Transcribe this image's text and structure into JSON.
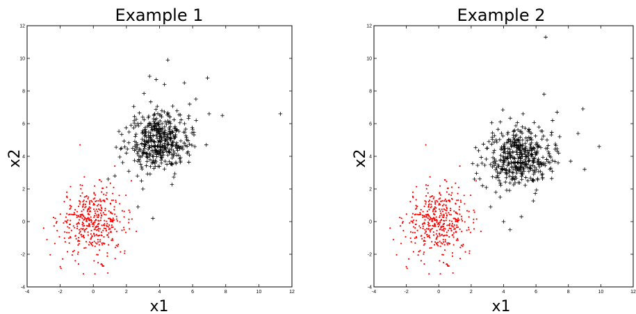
{
  "chart_data": [
    {
      "type": "scatter",
      "title": "Example 1",
      "xlabel": "x1",
      "ylabel": "x2",
      "xlim": [
        -4,
        12
      ],
      "ylim": [
        -4,
        12
      ],
      "xticks": [
        -4,
        -2,
        0,
        2,
        4,
        6,
        8,
        10,
        12
      ],
      "yticks": [
        -4,
        -2,
        0,
        2,
        4,
        6,
        8,
        10,
        12
      ],
      "grid": false,
      "series": [
        {
          "marker": "dot",
          "color": "#ff0000",
          "center": [
            0,
            0
          ],
          "spread": [
            1.0,
            1.0
          ],
          "points": [
            [
              -0.8,
              4.7
            ],
            [
              1.3,
              3.4
            ],
            [
              0.1,
              -3.2
            ],
            [
              -0.6,
              -3.2
            ],
            [
              -3.0,
              -0.4
            ],
            [
              -2.8,
              -1.1
            ],
            [
              2.3,
              2.5
            ],
            [
              1.9,
              -1.8
            ],
            [
              -1.6,
              1.8
            ],
            [
              0.5,
              -2.6
            ],
            [
              -2.3,
              0.2
            ],
            [
              2.6,
              -0.6
            ]
          ]
        },
        {
          "marker": "plus",
          "color": "#000000",
          "center": [
            4,
            5
          ],
          "spread": [
            0.9,
            0.9
          ],
          "points": [
            [
              4.5,
              9.9
            ],
            [
              3.4,
              8.9
            ],
            [
              3.8,
              8.7
            ],
            [
              6.9,
              8.8
            ],
            [
              11.3,
              6.6
            ],
            [
              7.8,
              6.5
            ],
            [
              2.0,
              4.2
            ],
            [
              1.3,
              2.8
            ],
            [
              3.6,
              0.2
            ],
            [
              2.7,
              0.9
            ],
            [
              0.9,
              2.6
            ],
            [
              5.5,
              8.5
            ],
            [
              6.2,
              7.5
            ],
            [
              1.7,
              4.5
            ],
            [
              7.0,
              6.6
            ],
            [
              4.3,
              8.4
            ],
            [
              3.0,
              2.0
            ]
          ]
        }
      ]
    },
    {
      "type": "scatter",
      "title": "Example 2",
      "xlabel": "x1",
      "ylabel": "x2",
      "xlim": [
        -4,
        12
      ],
      "ylim": [
        -4,
        12
      ],
      "xticks": [
        -4,
        -2,
        0,
        2,
        4,
        6,
        8,
        10,
        12
      ],
      "yticks": [
        -4,
        -2,
        0,
        2,
        4,
        6,
        8,
        10,
        12
      ],
      "grid": false,
      "series": [
        {
          "marker": "dot",
          "color": "#ff0000",
          "center": [
            0,
            0
          ],
          "spread": [
            1.0,
            1.0
          ],
          "points": [
            [
              -0.8,
              4.7
            ],
            [
              1.3,
              3.4
            ],
            [
              0.1,
              -3.2
            ],
            [
              -0.6,
              -3.2
            ],
            [
              -3.0,
              -0.4
            ],
            [
              -2.8,
              -1.1
            ],
            [
              2.3,
              2.5
            ],
            [
              1.9,
              -1.8
            ],
            [
              -1.6,
              1.8
            ],
            [
              0.5,
              -2.6
            ],
            [
              -2.3,
              0.2
            ],
            [
              2.6,
              -0.6
            ]
          ]
        },
        {
          "marker": "plus",
          "color": "#000000",
          "center": [
            5,
            4
          ],
          "spread": [
            1.0,
            0.9
          ],
          "points": [
            [
              6.6,
              11.3
            ],
            [
              6.5,
              7.8
            ],
            [
              9.9,
              4.6
            ],
            [
              8.9,
              6.9
            ],
            [
              8.6,
              5.4
            ],
            [
              9.0,
              3.2
            ],
            [
              2.7,
              2.2
            ],
            [
              3.2,
              0.9
            ],
            [
              4.0,
              0.0
            ],
            [
              5.1,
              0.3
            ],
            [
              2.2,
              2.6
            ],
            [
              7.3,
              6.7
            ],
            [
              3.8,
              6.1
            ],
            [
              5.2,
              6.6
            ],
            [
              7.4,
              4.2
            ],
            [
              3.0,
              4.5
            ],
            [
              4.4,
              -0.5
            ]
          ]
        }
      ]
    }
  ]
}
